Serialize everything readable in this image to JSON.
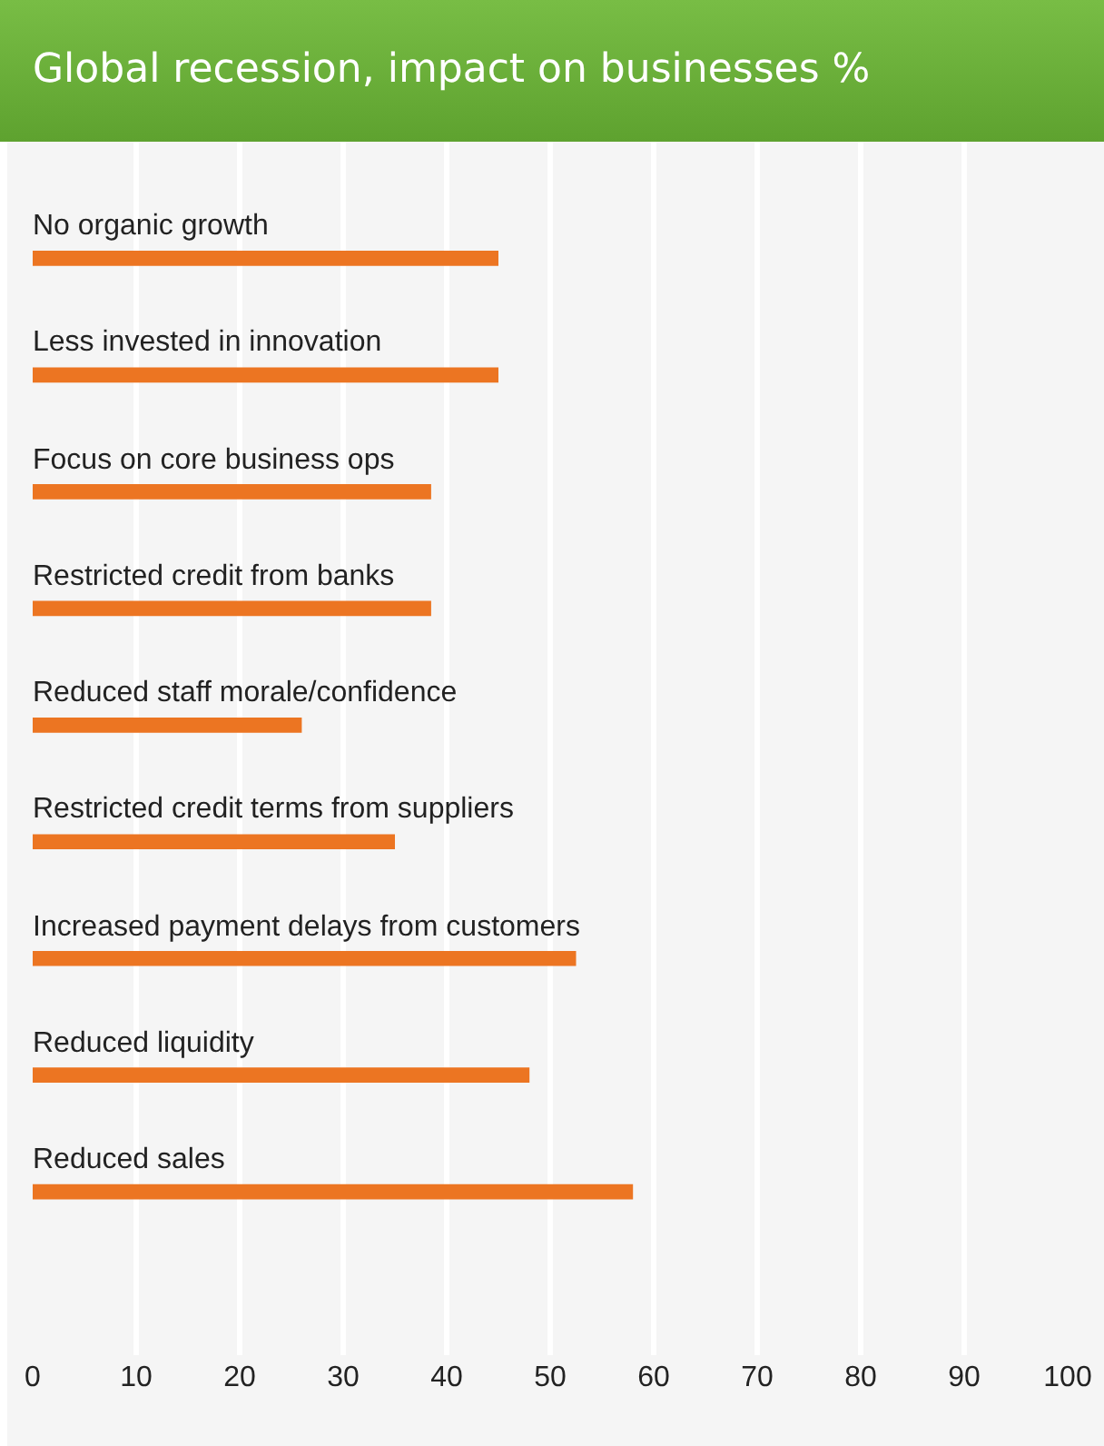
{
  "chart_data": {
    "type": "bar",
    "orientation": "horizontal",
    "title": "Global recession, impact on businesses %",
    "categories": [
      "No organic growth",
      "Less invested in innovation",
      "Focus on core business ops",
      "Restricted credit from banks",
      "Reduced staff morale/confidence",
      "Restricted credit terms from suppliers",
      "Increased payment delays from customers",
      "Reduced liquidity",
      "Reduced sales"
    ],
    "values": [
      45,
      45,
      38.5,
      38.5,
      26,
      35,
      52.5,
      48,
      58
    ],
    "color": "#ec7522",
    "xlim": [
      0,
      100
    ],
    "xticks": [
      0,
      10,
      20,
      30,
      40,
      50,
      60,
      70,
      80,
      90,
      100
    ],
    "grid": "x"
  }
}
